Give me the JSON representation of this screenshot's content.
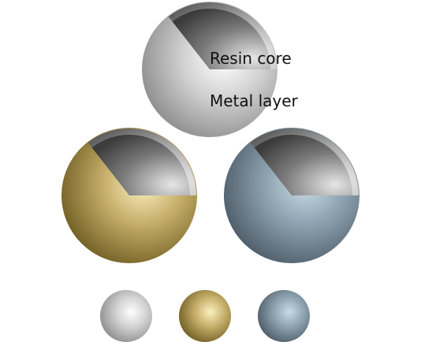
{
  "labels": {
    "core": "Resin core",
    "layer": "Metal layer"
  },
  "spheres": [
    {
      "name": "silver-sphere",
      "material": "silver"
    },
    {
      "name": "gold-sphere",
      "material": "gold"
    },
    {
      "name": "blue-steel-sphere",
      "material": "blue-steel"
    }
  ],
  "swatches": [
    {
      "name": "silver-swatch",
      "material": "silver"
    },
    {
      "name": "gold-swatch",
      "material": "gold"
    },
    {
      "name": "blue-steel-swatch",
      "material": "blue-steel"
    }
  ],
  "colors": {
    "silver": {
      "light": "#ffffff",
      "mid": "#d2d2d2",
      "dark": "#8c8c8c"
    },
    "gold": {
      "light": "#fbf0c0",
      "mid": "#c6ae6a",
      "dark": "#6f5d22"
    },
    "blue-steel": {
      "light": "#c9dbe6",
      "mid": "#8ea3b1",
      "dark": "#4d5b66"
    },
    "core-light": "#e6e6e6",
    "core-dark": "#3c3c3c",
    "rim-light": "#f2f2f2",
    "rim-dark": "#5a5a5a"
  }
}
